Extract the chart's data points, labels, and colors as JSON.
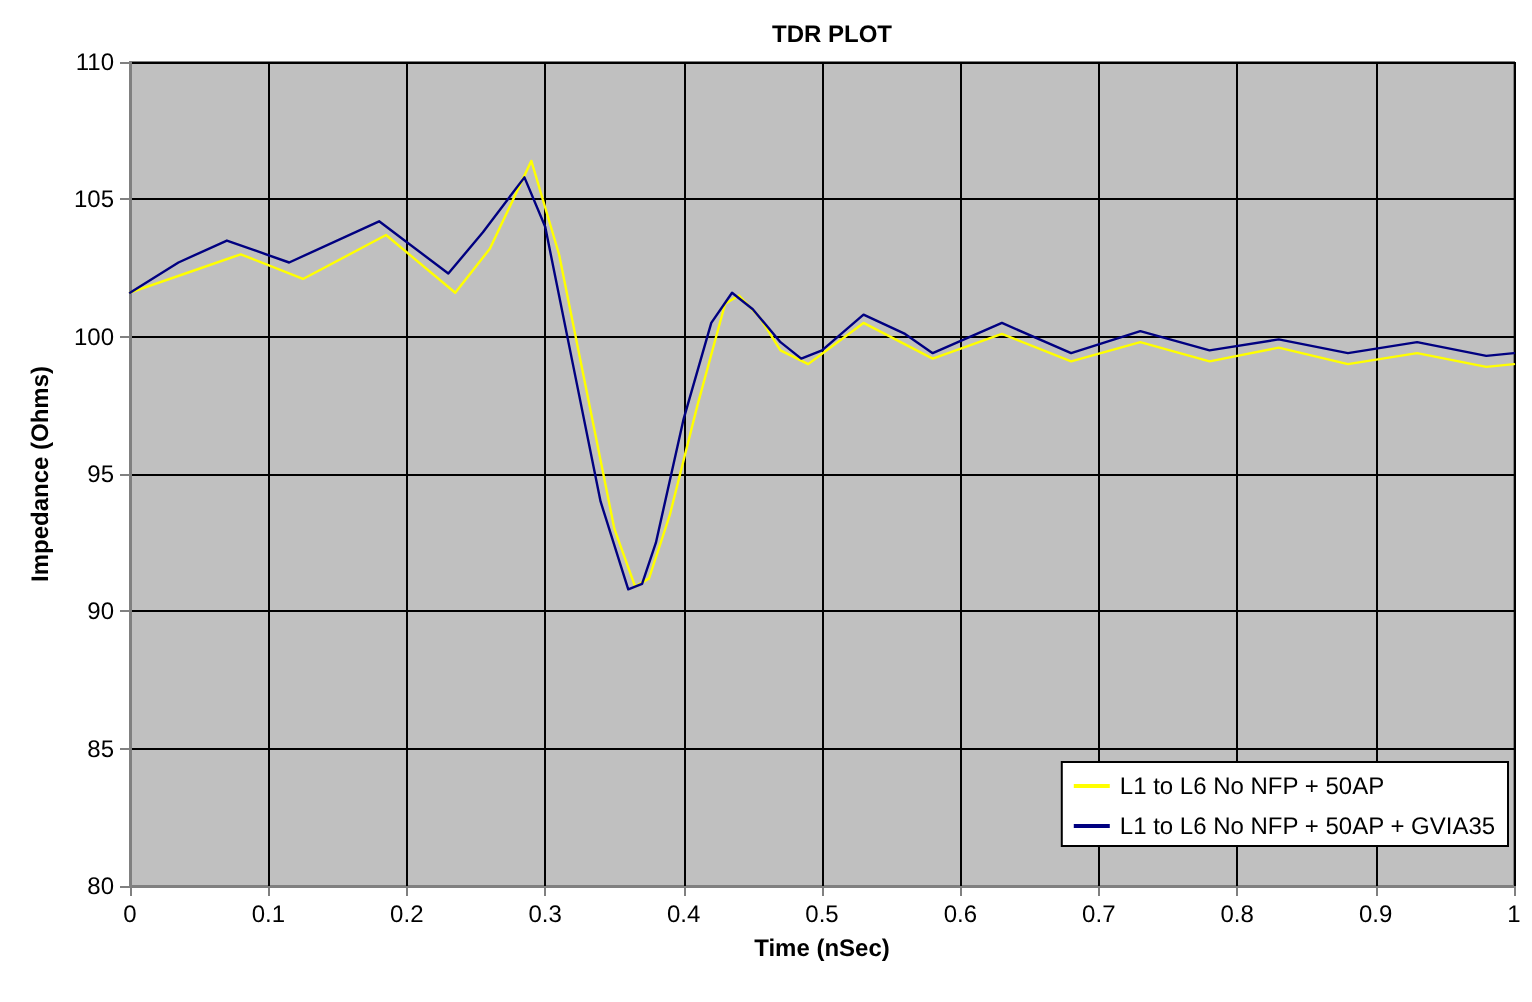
{
  "chart_data": {
    "type": "line",
    "title": "TDR PLOT",
    "xlabel": "Time (nSec)",
    "ylabel": "Impedance (Ohms)",
    "xlim": [
      0,
      1
    ],
    "xticks": [
      0,
      0.1,
      0.2,
      0.3,
      0.4,
      0.5,
      0.6,
      0.7,
      0.8,
      0.9,
      1
    ],
    "ylim": [
      80,
      110
    ],
    "yticks": [
      80,
      85,
      90,
      95,
      100,
      105,
      110
    ],
    "grid": true,
    "legend": "bottom right",
    "marker": "none",
    "line_style": "solid",
    "series": [
      {
        "name": "L1 to L6 No NFP + 50AP",
        "color": "#ffff00",
        "x": [
          0,
          0.04,
          0.08,
          0.125,
          0.185,
          0.235,
          0.26,
          0.29,
          0.31,
          0.33,
          0.35,
          0.365,
          0.375,
          0.39,
          0.41,
          0.43,
          0.44,
          0.455,
          0.47,
          0.49,
          0.53,
          0.58,
          0.63,
          0.68,
          0.73,
          0.78,
          0.83,
          0.88,
          0.93,
          0.98,
          1
        ],
        "values": [
          101.6,
          102.3,
          103.0,
          102.1,
          103.7,
          101.6,
          103.2,
          106.4,
          103,
          98,
          93,
          90.9,
          91.2,
          93.5,
          97.5,
          101.2,
          101.5,
          100.7,
          99.5,
          99.0,
          100.5,
          99.2,
          100.1,
          99.1,
          99.8,
          99.1,
          99.6,
          99.0,
          99.4,
          98.9,
          99.0
        ]
      },
      {
        "name": "L1 to L6 No NFP + 50AP + GVIA35",
        "color": "#000080",
        "x": [
          0,
          0.035,
          0.07,
          0.115,
          0.18,
          0.23,
          0.255,
          0.285,
          0.3,
          0.32,
          0.34,
          0.36,
          0.37,
          0.38,
          0.4,
          0.42,
          0.435,
          0.45,
          0.47,
          0.485,
          0.5,
          0.53,
          0.56,
          0.58,
          0.63,
          0.68,
          0.73,
          0.78,
          0.83,
          0.88,
          0.93,
          0.98,
          1
        ],
        "values": [
          101.6,
          102.7,
          103.5,
          102.7,
          104.2,
          102.3,
          103.8,
          105.8,
          104,
          99,
          94,
          90.8,
          91,
          92.5,
          97,
          100.5,
          101.6,
          101,
          99.8,
          99.2,
          99.5,
          100.8,
          100.1,
          99.4,
          100.5,
          99.4,
          100.2,
          99.5,
          99.9,
          99.4,
          99.8,
          99.3,
          99.4
        ]
      }
    ]
  }
}
